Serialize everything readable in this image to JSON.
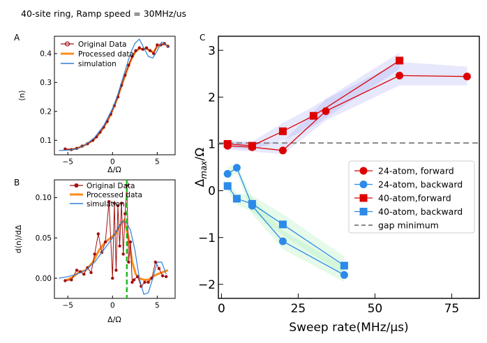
{
  "page_title": "40-site ring, Ramp speed = 30MHz/us",
  "colors": {
    "original": "#a01010",
    "processed": "#ff8c1a",
    "simulation": "#2f7fd8",
    "red": "#dd0000",
    "blue": "#2c8ae8",
    "gap": "#888888",
    "green_line": "#22bb22"
  },
  "chart_data": [
    {
      "panel": "A",
      "type": "line",
      "xlabel": "Δ/Ω",
      "ylabel": "⟨n⟩",
      "xlim": [
        -6.5,
        7
      ],
      "ylim": [
        0.05,
        0.46
      ],
      "xticks": [
        -5,
        0,
        5
      ],
      "xtick_labels": [
        "−5",
        "0",
        "5"
      ],
      "yticks": [
        0.1,
        0.2,
        0.3,
        0.4
      ],
      "ytick_labels": [
        "0.1",
        "0.2",
        "0.3",
        "0.4"
      ],
      "legend": [
        "Original Data",
        "Processed data",
        "simulation"
      ],
      "legend_position": "top-left",
      "series": [
        {
          "name": "Original Data",
          "x": [
            -5.3,
            -4.6,
            -4.0,
            -3.4,
            -2.8,
            -2.2,
            -1.8,
            -1.4,
            -1.0,
            -0.6,
            -0.2,
            0.2,
            0.6,
            1.0,
            1.4,
            1.8,
            2.2,
            2.6,
            3.0,
            3.4,
            3.8,
            4.2,
            4.6,
            5.0,
            5.4,
            5.8,
            6.2
          ],
          "y": [
            0.07,
            0.068,
            0.072,
            0.08,
            0.088,
            0.1,
            0.112,
            0.128,
            0.145,
            0.165,
            0.19,
            0.22,
            0.25,
            0.29,
            0.325,
            0.36,
            0.39,
            0.41,
            0.42,
            0.415,
            0.42,
            0.41,
            0.4,
            0.43,
            0.43,
            0.435,
            0.425
          ]
        },
        {
          "name": "Processed data",
          "x": [
            -5.3,
            -4.6,
            -4.0,
            -3.4,
            -2.8,
            -2.2,
            -1.8,
            -1.4,
            -1.0,
            -0.6,
            -0.2,
            0.2,
            0.6,
            1.0,
            1.4,
            1.8,
            2.2,
            2.6,
            3.0,
            3.4,
            3.8,
            4.2,
            4.6,
            5.0,
            5.4,
            5.8,
            6.2
          ],
          "y": [
            0.068,
            0.068,
            0.072,
            0.079,
            0.088,
            0.1,
            0.112,
            0.127,
            0.145,
            0.166,
            0.19,
            0.22,
            0.252,
            0.288,
            0.324,
            0.358,
            0.388,
            0.408,
            0.417,
            0.415,
            0.417,
            0.41,
            0.405,
            0.425,
            0.43,
            0.433,
            0.426
          ]
        },
        {
          "name": "simulation",
          "x": [
            -6.0,
            -5.0,
            -4.0,
            -3.0,
            -2.0,
            -1.0,
            0.0,
            0.5,
            1.0,
            1.5,
            2.0,
            2.5,
            3.0,
            3.5,
            4.0,
            4.5,
            5.0,
            5.5,
            6.0,
            6.3
          ],
          "y": [
            0.065,
            0.066,
            0.07,
            0.085,
            0.11,
            0.15,
            0.21,
            0.25,
            0.3,
            0.35,
            0.4,
            0.435,
            0.45,
            0.42,
            0.39,
            0.385,
            0.41,
            0.44,
            0.43,
            0.42
          ]
        }
      ]
    },
    {
      "panel": "B",
      "type": "line",
      "xlabel": "Δ/Ω",
      "ylabel": "d⟨n⟩/dΔ",
      "xlim": [
        -6.5,
        7
      ],
      "ylim": [
        -0.025,
        0.122
      ],
      "xticks": [
        -5,
        0,
        5
      ],
      "xtick_labels": [
        "−5",
        "0",
        "5"
      ],
      "yticks": [
        0.0,
        0.05,
        0.1
      ],
      "ytick_labels": [
        "0.00",
        "0.05",
        "0.10"
      ],
      "vline_x": 1.6,
      "legend": [
        "Original Data",
        "Processed data",
        "simulation"
      ],
      "legend_position": "top-left",
      "series": [
        {
          "name": "Original Data",
          "x": [
            -5.3,
            -4.6,
            -4.0,
            -3.6,
            -3.2,
            -2.8,
            -2.4,
            -2.0,
            -1.6,
            -1.2,
            -0.8,
            -0.4,
            0.0,
            0.2,
            0.4,
            0.6,
            0.8,
            1.0,
            1.2,
            1.4,
            1.6,
            1.8,
            2.0,
            2.2,
            2.4,
            2.8,
            3.2,
            3.6,
            4.0,
            4.4,
            4.8,
            5.2,
            5.6,
            6.0
          ],
          "y": [
            -0.003,
            -0.002,
            0.01,
            0.008,
            0.005,
            0.013,
            0.007,
            0.03,
            0.055,
            0.032,
            0.045,
            0.095,
            0.0,
            0.093,
            0.01,
            0.09,
            0.04,
            0.093,
            0.03,
            0.08,
            0.115,
            0.02,
            0.045,
            -0.005,
            -0.002,
            0.002,
            -0.01,
            -0.005,
            -0.005,
            0.0,
            0.02,
            0.012,
            0.003,
            0.002
          ]
        },
        {
          "name": "Processed data",
          "x": [
            -5.3,
            -4.5,
            -3.8,
            -3.0,
            -2.2,
            -1.5,
            -0.8,
            -0.2,
            0.3,
            0.8,
            1.3,
            1.8,
            2.2,
            2.6,
            3.0,
            3.5,
            4.0,
            4.5,
            5.0,
            5.5,
            6.2
          ],
          "y": [
            -0.003,
            0.001,
            0.007,
            0.01,
            0.02,
            0.035,
            0.045,
            0.05,
            0.055,
            0.065,
            0.072,
            0.05,
            0.02,
            0.005,
            0.0,
            -0.002,
            -0.002,
            0.002,
            0.005,
            0.007,
            0.01
          ]
        },
        {
          "name": "simulation",
          "x": [
            -6.0,
            -5.0,
            -4.0,
            -3.0,
            -2.0,
            -1.0,
            0.0,
            0.5,
            1.0,
            1.5,
            2.0,
            2.5,
            3.0,
            3.5,
            4.0,
            4.5,
            5.0,
            5.5,
            6.0
          ],
          "y": [
            0.0,
            0.002,
            0.005,
            0.01,
            0.02,
            0.035,
            0.05,
            0.06,
            0.07,
            0.07,
            0.06,
            0.035,
            0.0,
            -0.02,
            -0.018,
            0.0,
            0.02,
            0.02,
            0.005
          ]
        }
      ]
    },
    {
      "panel": "C",
      "type": "line",
      "xlabel": "Sweep rate(MHz/μs)",
      "ylabel": "Δmax/Ω",
      "xlim": [
        -1,
        84
      ],
      "ylim": [
        -2.3,
        3.3
      ],
      "xticks": [
        0,
        25,
        50,
        75
      ],
      "xtick_labels": [
        "0",
        "25",
        "50",
        "75"
      ],
      "yticks": [
        -2,
        -1,
        0,
        1,
        2,
        3
      ],
      "ytick_labels": [
        "−2",
        "−1",
        "0",
        "1",
        "2",
        "3"
      ],
      "hline_y": 1.02,
      "legend": [
        "24-atom, forward",
        "24-atom, backward",
        "40-atom,forward",
        "40-atom, backward",
        "gap minimum"
      ],
      "legend_position": "right",
      "series": [
        {
          "name": "24-atom, forward",
          "marker": "circle",
          "color": "red",
          "x": [
            2,
            10,
            20,
            34,
            58,
            80
          ],
          "y": [
            0.96,
            0.93,
            0.86,
            1.7,
            2.46,
            2.44
          ],
          "band_upper": [
            1.05,
            1.02,
            1.05,
            1.95,
            2.75,
            2.65
          ],
          "band_lower": [
            0.88,
            0.84,
            0.78,
            1.5,
            2.25,
            2.25
          ]
        },
        {
          "name": "24-atom, backward",
          "marker": "circle",
          "color": "blue",
          "x": [
            2,
            5,
            10,
            20,
            40
          ],
          "y": [
            0.36,
            0.49,
            -0.32,
            -1.08,
            -1.8
          ],
          "band_upper": [
            0.5,
            0.58,
            -0.15,
            -0.85,
            -1.62
          ],
          "band_lower": [
            0.25,
            0.38,
            -0.5,
            -1.25,
            -1.95
          ]
        },
        {
          "name": "40-atom,forward",
          "marker": "square",
          "color": "red",
          "x": [
            2,
            10,
            20,
            30,
            58
          ],
          "y": [
            1.0,
            0.96,
            1.27,
            1.6,
            2.78
          ],
          "band_upper": [
            1.08,
            1.05,
            1.45,
            1.8,
            2.95
          ],
          "band_lower": [
            0.92,
            0.88,
            1.08,
            1.38,
            2.6
          ]
        },
        {
          "name": "40-atom, backward",
          "marker": "square",
          "color": "blue",
          "x": [
            2,
            5,
            10,
            20,
            40
          ],
          "y": [
            0.1,
            -0.17,
            -0.28,
            -0.72,
            -1.6
          ],
          "band_upper": [
            0.22,
            -0.05,
            -0.1,
            -0.5,
            -1.4
          ],
          "band_lower": [
            -0.02,
            -0.3,
            -0.45,
            -0.95,
            -1.8
          ]
        }
      ]
    }
  ],
  "panel_labels": {
    "a": "A",
    "b": "B",
    "c": "C"
  }
}
